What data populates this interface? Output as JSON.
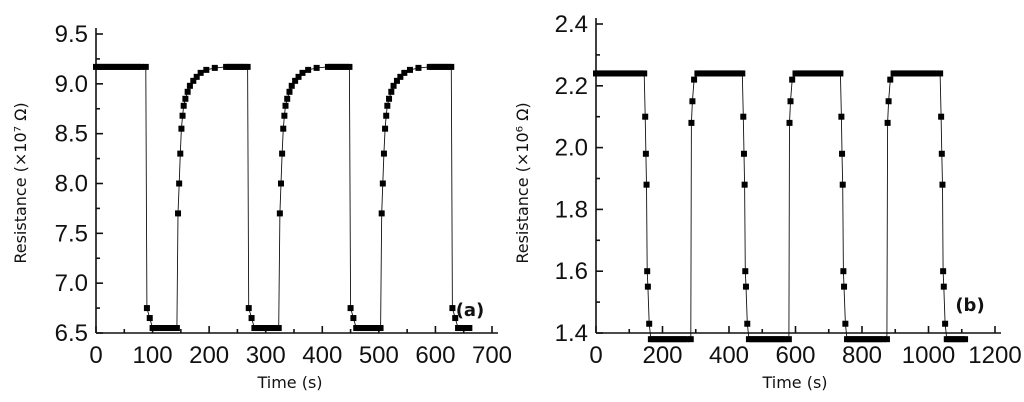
{
  "chart_data": [
    {
      "panel": "(a)",
      "type": "scatter",
      "xlabel": "Time (s)",
      "ylabel": "Resistance (×10⁷ Ω)",
      "xlim": [
        0,
        700
      ],
      "ylim": [
        6.5,
        9.5
      ],
      "xticks": [
        "0",
        "100",
        "200",
        "300",
        "400",
        "500",
        "600",
        "700"
      ],
      "yticks": [
        "6.5",
        "7.0",
        "7.5",
        "8.0",
        "8.5",
        "9.0",
        "9.5"
      ],
      "series": [
        {
          "points": [
            [
              0,
              9.17
            ],
            [
              88,
              9.17
            ],
            [
              90,
              6.75
            ],
            [
              95,
              6.65
            ],
            [
              100,
              6.55
            ],
            [
              143,
              6.55
            ],
            [
              145,
              7.7
            ],
            [
              147,
              8.0
            ],
            [
              149,
              8.3
            ],
            [
              151,
              8.55
            ],
            [
              153,
              8.68
            ],
            [
              155,
              8.78
            ],
            [
              158,
              8.85
            ],
            [
              162,
              8.92
            ],
            [
              166,
              8.98
            ],
            [
              172,
              9.03
            ],
            [
              178,
              9.07
            ],
            [
              185,
              9.11
            ],
            [
              195,
              9.14
            ],
            [
              210,
              9.16
            ],
            [
              230,
              9.17
            ],
            [
              268,
              9.17
            ],
            [
              270,
              6.75
            ],
            [
              275,
              6.65
            ],
            [
              280,
              6.55
            ],
            [
              323,
              6.55
            ],
            [
              325,
              7.7
            ],
            [
              327,
              8.0
            ],
            [
              329,
              8.3
            ],
            [
              331,
              8.55
            ],
            [
              333,
              8.68
            ],
            [
              335,
              8.78
            ],
            [
              338,
              8.85
            ],
            [
              342,
              8.92
            ],
            [
              346,
              8.98
            ],
            [
              352,
              9.03
            ],
            [
              358,
              9.07
            ],
            [
              365,
              9.11
            ],
            [
              375,
              9.14
            ],
            [
              390,
              9.16
            ],
            [
              410,
              9.17
            ],
            [
              448,
              9.17
            ],
            [
              450,
              6.75
            ],
            [
              455,
              6.65
            ],
            [
              460,
              6.55
            ],
            [
              503,
              6.55
            ],
            [
              505,
              7.7
            ],
            [
              507,
              8.0
            ],
            [
              509,
              8.3
            ],
            [
              511,
              8.55
            ],
            [
              513,
              8.68
            ],
            [
              515,
              8.78
            ],
            [
              518,
              8.85
            ],
            [
              522,
              8.92
            ],
            [
              526,
              8.98
            ],
            [
              532,
              9.03
            ],
            [
              538,
              9.07
            ],
            [
              545,
              9.11
            ],
            [
              555,
              9.14
            ],
            [
              570,
              9.16
            ],
            [
              590,
              9.17
            ],
            [
              628,
              9.17
            ],
            [
              630,
              6.75
            ],
            [
              635,
              6.65
            ],
            [
              640,
              6.55
            ],
            [
              660,
              6.55
            ]
          ]
        }
      ]
    },
    {
      "panel": "(b)",
      "type": "scatter",
      "xlabel": "Time (s)",
      "ylabel": "Resistance (×10⁶ Ω)",
      "xlim": [
        0,
        1200
      ],
      "ylim": [
        1.4,
        2.4
      ],
      "xticks": [
        "0",
        "200",
        "400",
        "600",
        "800",
        "1000",
        "1200"
      ],
      "yticks": [
        "1.4",
        "1.6",
        "1.8",
        "2.0",
        "2.2",
        "2.4"
      ],
      "series": [
        {
          "points": [
            [
              0,
              2.24
            ],
            [
              145,
              2.24
            ],
            [
              148,
              2.1
            ],
            [
              150,
              1.98
            ],
            [
              152,
              1.88
            ],
            [
              154,
              1.6
            ],
            [
              156,
              1.55
            ],
            [
              160,
              1.43
            ],
            [
              165,
              1.38
            ],
            [
              285,
              1.38
            ],
            [
              287,
              2.08
            ],
            [
              290,
              2.15
            ],
            [
              295,
              2.22
            ],
            [
              305,
              2.24
            ],
            [
              440,
              2.24
            ],
            [
              443,
              2.1
            ],
            [
              445,
              1.98
            ],
            [
              447,
              1.88
            ],
            [
              449,
              1.6
            ],
            [
              451,
              1.55
            ],
            [
              455,
              1.43
            ],
            [
              460,
              1.38
            ],
            [
              580,
              1.38
            ],
            [
              582,
              2.08
            ],
            [
              585,
              2.15
            ],
            [
              590,
              2.22
            ],
            [
              600,
              2.24
            ],
            [
              735,
              2.24
            ],
            [
              738,
              2.1
            ],
            [
              740,
              1.98
            ],
            [
              742,
              1.88
            ],
            [
              744,
              1.6
            ],
            [
              746,
              1.55
            ],
            [
              750,
              1.43
            ],
            [
              755,
              1.38
            ],
            [
              875,
              1.38
            ],
            [
              877,
              2.08
            ],
            [
              880,
              2.15
            ],
            [
              885,
              2.22
            ],
            [
              895,
              2.24
            ],
            [
              1035,
              2.24
            ],
            [
              1038,
              2.1
            ],
            [
              1040,
              1.98
            ],
            [
              1042,
              1.88
            ],
            [
              1044,
              1.6
            ],
            [
              1046,
              1.55
            ],
            [
              1050,
              1.43
            ],
            [
              1055,
              1.38
            ],
            [
              1110,
              1.38
            ]
          ]
        }
      ]
    }
  ]
}
